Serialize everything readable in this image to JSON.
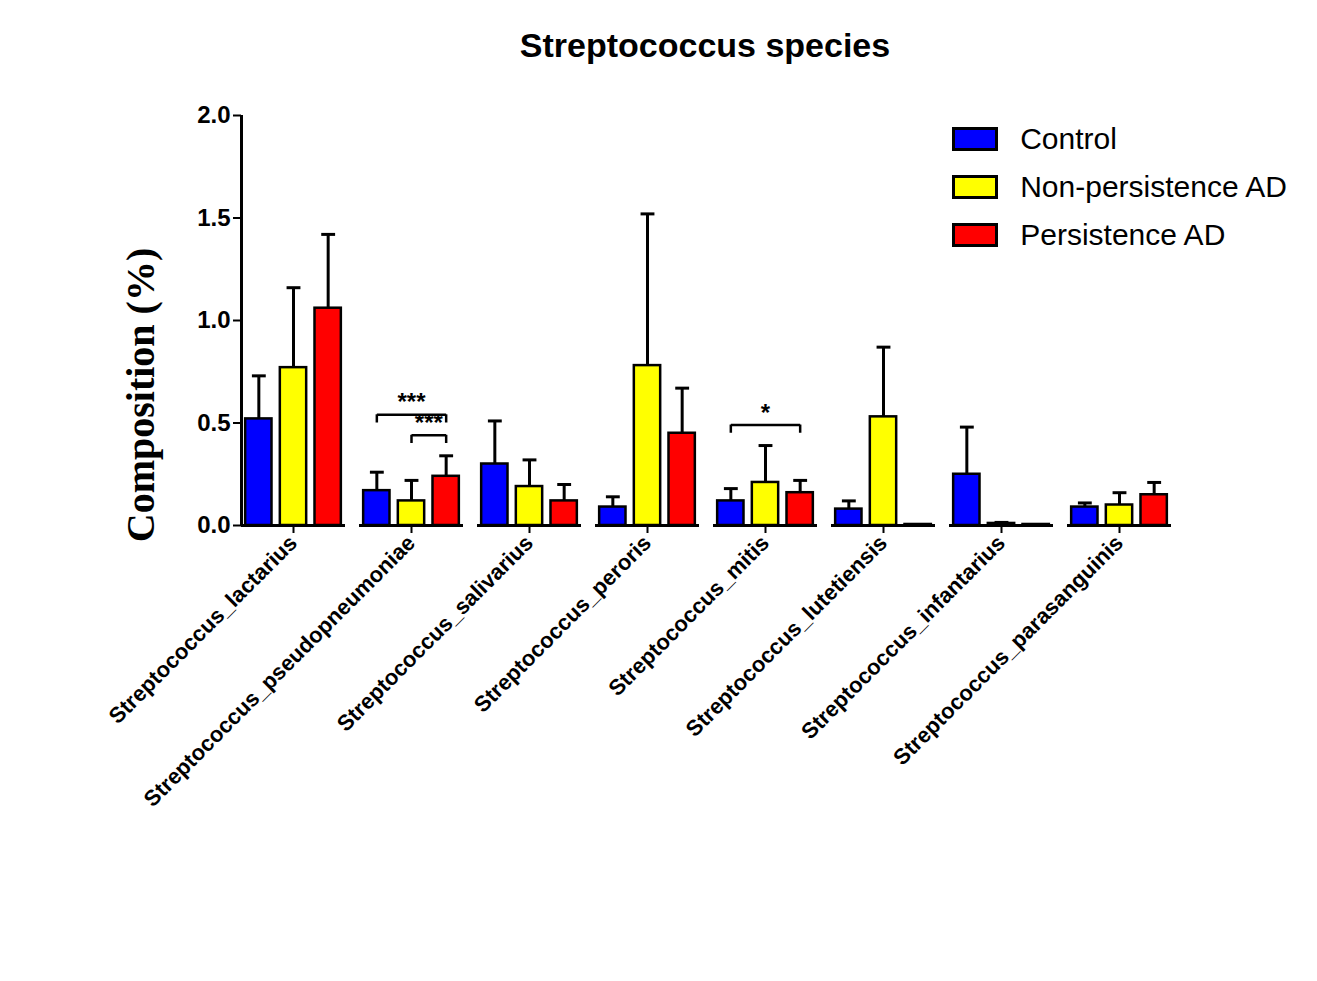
{
  "chart_data": {
    "type": "bar",
    "title": "Streptococcus species",
    "y_label": "Composition (%)",
    "categories": [
      "Streptococcus_lactarius",
      "Streptococcus_pseudopneumoniae",
      "Streptococcus_salivarius",
      "Streptococcus_peroris",
      "Streptococcus_mitis",
      "Streptococcus_lutetiensis",
      "Streptococcus_infantarius",
      "Streptococcus_parasanguinis"
    ],
    "series": [
      {
        "name": "Control",
        "color": "#0000ff",
        "values": [
          0.52,
          0.17,
          0.3,
          0.09,
          0.12,
          0.08,
          0.25,
          0.09
        ],
        "errors": [
          0.21,
          0.09,
          0.21,
          0.05,
          0.06,
          0.04,
          0.23,
          0.02
        ]
      },
      {
        "name": "Non-persistence AD",
        "color": "#ffff00",
        "values": [
          0.77,
          0.12,
          0.19,
          0.78,
          0.21,
          0.53,
          0.01,
          0.1
        ],
        "errors": [
          0.39,
          0.1,
          0.13,
          0.74,
          0.18,
          0.34,
          0.005,
          0.06
        ]
      },
      {
        "name": "Persistence AD",
        "color": "#ff0000",
        "values": [
          1.06,
          0.24,
          0.12,
          0.45,
          0.16,
          0.005,
          0.005,
          0.15
        ],
        "errors": [
          0.36,
          0.1,
          0.08,
          0.22,
          0.06,
          0,
          0,
          0.06
        ]
      }
    ],
    "annotations": [
      {
        "category": "Streptococcus_pseudopneumoniae",
        "from": "Control",
        "to": "Persistence AD",
        "label": "***"
      },
      {
        "category": "Streptococcus_pseudopneumoniae",
        "from": "Non-persistence AD",
        "to": "Persistence AD",
        "label": "***"
      },
      {
        "category": "Streptococcus_mitis",
        "from": "Control",
        "to": "Persistence AD",
        "label": "*"
      }
    ],
    "ylim": [
      0,
      2
    ],
    "yticks": [
      {
        "value": 0,
        "label": "0.0"
      },
      0.5,
      {
        "value": 1,
        "label": "1.0"
      },
      1.5,
      {
        "value": 2,
        "label": "2.0"
      }
    ],
    "legend": "top-right",
    "grid": false
  }
}
